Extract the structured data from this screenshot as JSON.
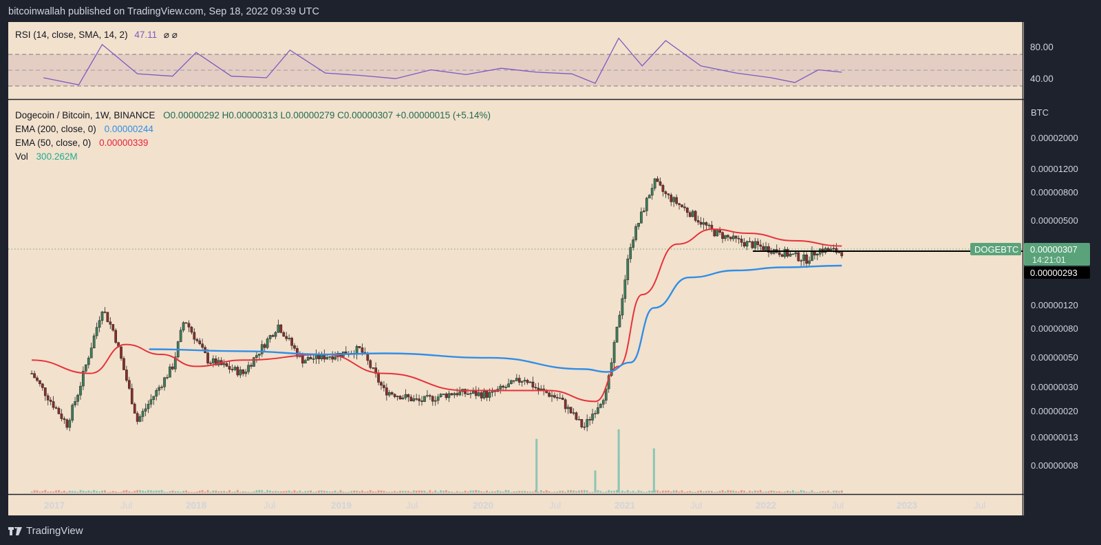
{
  "header": {
    "published": "bitcoinwallah published on TradingView.com, Sep 18, 2022 09:39 UTC"
  },
  "brand": {
    "name": "TradingView"
  },
  "colors": {
    "background": "#f2e1cc",
    "frame": "#1e222d",
    "candle_up": "#3f7d5b",
    "candle_down": "#8a2e2b",
    "ema200": "#2f8ee8",
    "ema50": "#e6313b",
    "rsi": "#7e57c2",
    "vol_up": "#8cc5b6",
    "vol_down": "#e49a8f",
    "label_bg": "#5aa37a"
  },
  "rsi_legend": {
    "title": "RSI (14, close, SMA, 14, 2)",
    "value": "47.11",
    "icons": "⌀  ⌀"
  },
  "main_legend": {
    "symbol": "Dogecoin / Bitcoin, 1W, BINANCE",
    "ohlc": "O0.00000292  H0.00000313  L0.00000279  C0.00000307  +0.00000015 (+5.14%)",
    "ema200_label": "EMA (200, close, 0)",
    "ema200_value": "0.00000244",
    "ema50_label": "EMA (50, close, 0)",
    "ema50_value": "0.00000339",
    "vol_label": "Vol",
    "vol_value": "300.262M"
  },
  "price_labels": {
    "currency": "BTC",
    "symbol_tag": "DOGEBTC",
    "last_price": "0.00000307",
    "countdown": "14:21:01",
    "support": "0.00000293"
  },
  "chart_data": [
    {
      "type": "line",
      "name": "RSI",
      "y_ticks": [
        "80.00",
        "40.00"
      ],
      "levels": [
        70,
        50,
        30
      ],
      "x": [
        "2017-01",
        "2017-04",
        "2017-06",
        "2017-09",
        "2017-12",
        "2018-02",
        "2018-05",
        "2018-08",
        "2018-10",
        "2019-01",
        "2019-04",
        "2019-07",
        "2019-10",
        "2020-01",
        "2020-04",
        "2020-07",
        "2020-10",
        "2020-12",
        "2021-02",
        "2021-04",
        "2021-06",
        "2021-09",
        "2021-12",
        "2022-03",
        "2022-05",
        "2022-07",
        "2022-09"
      ],
      "values": [
        40,
        31,
        82,
        45,
        42,
        72,
        42,
        40,
        75,
        46,
        43,
        39,
        50,
        44,
        52,
        47,
        45,
        33,
        90,
        55,
        87,
        55,
        46,
        40,
        34,
        50,
        47
      ]
    },
    {
      "type": "candlestick",
      "name": "Dogecoin / Bitcoin",
      "scale": "log",
      "y_unit": "BTC",
      "y_ticks": [
        "0.00002000",
        "0.00001200",
        "0.00000800",
        "0.00000500",
        "0.00000307",
        "0.00000293",
        "0.00000120",
        "0.00000080",
        "0.00000050",
        "0.00000030",
        "0.00000020",
        "0.00000013",
        "0.00000008"
      ],
      "x_ticks": [
        "2017",
        "Jul",
        "2018",
        "Jul",
        "2019",
        "Jul",
        "2020",
        "Jul",
        "2021",
        "Jul",
        "2022",
        "Jul",
        "2023",
        "Jul"
      ],
      "x": [
        "2016-12",
        "2017-03",
        "2017-04",
        "2017-06",
        "2017-07",
        "2017-09",
        "2017-12",
        "2018-01",
        "2018-03",
        "2018-06",
        "2018-09",
        "2018-11",
        "2019-02",
        "2019-04",
        "2019-06",
        "2019-09",
        "2019-12",
        "2020-03",
        "2020-06",
        "2020-07",
        "2020-09",
        "2020-11",
        "2021-01",
        "2021-02",
        "2021-03",
        "2021-05",
        "2021-06",
        "2021-08",
        "2021-10",
        "2021-12",
        "2022-03",
        "2022-06",
        "2022-07",
        "2022-09"
      ],
      "close": [
        4e-07,
        1.7e-07,
        3e-07,
        1.2e-06,
        8e-07,
        1.8e-07,
        4.5e-07,
        1e-06,
        5e-07,
        4e-07,
        9e-07,
        5e-07,
        5.5e-07,
        6e-07,
        3e-07,
        2.5e-07,
        2.9e-07,
        2.8e-07,
        3.7e-07,
        3.1e-07,
        2.6e-07,
        1.6e-07,
        3e-07,
        1e-06,
        3.5e-06,
        1e-05,
        8e-06,
        6e-06,
        4.3e-06,
        3.7e-06,
        3.2e-06,
        2.7e-06,
        3.2e-06,
        3.07e-06
      ],
      "ema200": {
        "x": [
          "2017-10",
          "2018-06",
          "2019-01",
          "2019-06",
          "2020-03",
          "2020-11",
          "2021-01",
          "2021-03",
          "2021-05",
          "2021-08",
          "2021-12",
          "2022-04",
          "2022-09"
        ],
        "values": [
          6e-07,
          5.8e-07,
          5.5e-07,
          5.6e-07,
          5.2e-07,
          4.3e-07,
          4.1e-07,
          4.8e-07,
          1.2e-06,
          2e-06,
          2.25e-06,
          2.37e-06,
          2.44e-06
        ]
      },
      "ema50": {
        "x": [
          "2016-12",
          "2017-05",
          "2017-08",
          "2017-11",
          "2018-02",
          "2018-06",
          "2019-01",
          "2019-06",
          "2020-01",
          "2020-08",
          "2020-12",
          "2021-02",
          "2021-04",
          "2021-07",
          "2021-10",
          "2022-01",
          "2022-05",
          "2022-09"
        ],
        "values": [
          5e-07,
          4e-07,
          6.5e-07,
          5.5e-07,
          4.5e-07,
          5e-07,
          5.5e-07,
          4e-07,
          3e-07,
          3e-07,
          2.5e-07,
          4.5e-07,
          1.5e-06,
          3.5e-06,
          4.5e-06,
          4.2e-06,
          3.7e-06,
          3.39e-06
        ]
      },
      "support_line": 2.93e-06,
      "volume_spikes": {
        "x": [
          "2020-07",
          "2020-12",
          "2021-02",
          "2021-02",
          "2021-05"
        ],
        "relative": [
          0.85,
          0.35,
          1.0,
          0.55,
          0.7
        ]
      }
    }
  ]
}
